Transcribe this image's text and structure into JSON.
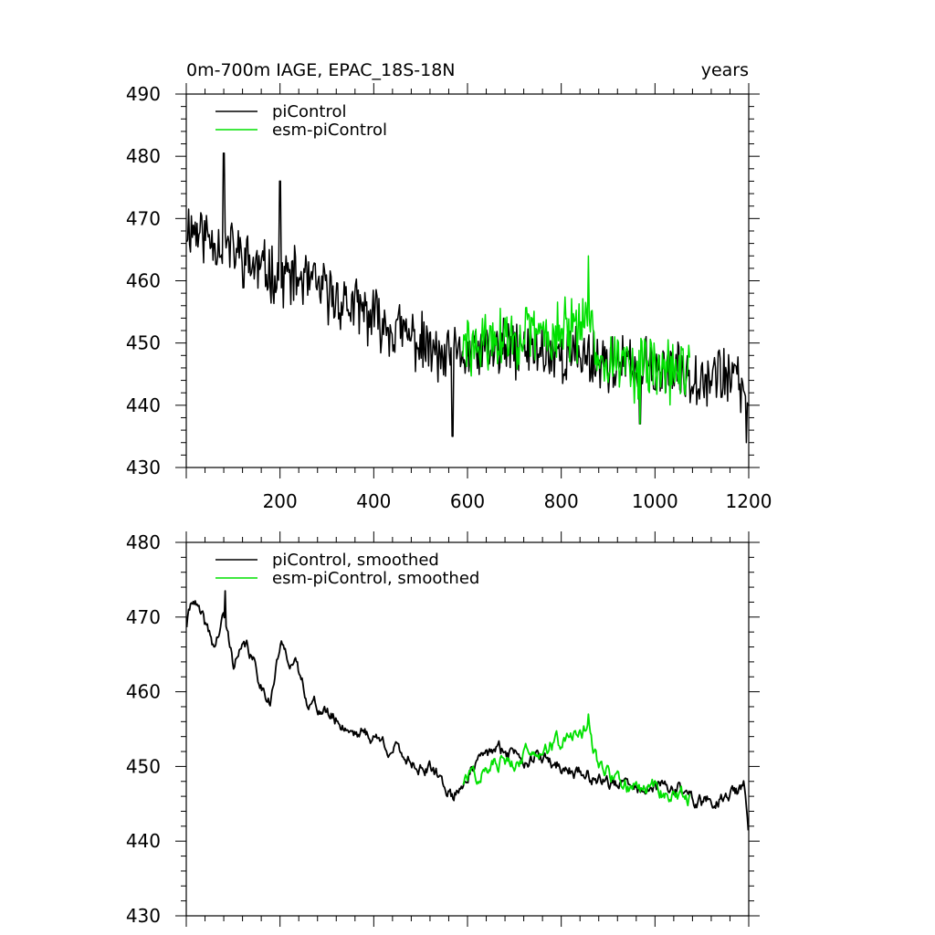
{
  "figure": {
    "title_left": "0m-700m IAGE, EPAC_18S-18N",
    "title_right": "years"
  },
  "colors": {
    "piControl": "#000000",
    "esm_piControl": "#00e000",
    "axis": "#000000",
    "background": "#ffffff"
  },
  "chart_data": [
    {
      "type": "line",
      "title": "0m-700m IAGE, EPAC_18S-18N",
      "xlabel": "years",
      "ylabel": "",
      "xlim": [
        0,
        1200
      ],
      "ylim": [
        430,
        490
      ],
      "xticks": [
        200,
        400,
        600,
        800,
        1000,
        1200
      ],
      "yticks": [
        430,
        440,
        450,
        460,
        470,
        480,
        490
      ],
      "legend": [
        "piControl",
        "esm-piControl"
      ],
      "legend_position": "top-left",
      "series": [
        {
          "name": "piControl",
          "color": "#000000",
          "noise": 4.2,
          "seed": 11,
          "x": [
            1,
            50,
            100,
            150,
            200,
            250,
            300,
            350,
            400,
            450,
            500,
            550,
            600,
            650,
            700,
            750,
            800,
            850,
            900,
            950,
            1000,
            1050,
            1100,
            1150,
            1200
          ],
          "y": [
            469,
            467,
            465,
            462,
            461,
            460,
            458,
            456,
            454,
            452,
            450,
            447,
            448,
            449,
            449,
            449,
            448,
            448,
            447,
            446,
            446,
            445,
            445,
            445,
            442
          ]
        },
        {
          "name": "esm-piControl",
          "color": "#00e000",
          "noise": 4.6,
          "seed": 29,
          "x": [
            590,
            650,
            700,
            750,
            800,
            850,
            900,
            950,
            1000,
            1050,
            1075
          ],
          "y": [
            449,
            450,
            451,
            451,
            452,
            452,
            448,
            446,
            446,
            445,
            446
          ]
        }
      ],
      "spikes": [
        {
          "x": 80,
          "y": 480.5
        },
        {
          "x": 200,
          "y": 476
        },
        {
          "x": 568,
          "y": 435
        },
        {
          "x": 858,
          "y": 464
        },
        {
          "x": 968,
          "y": 437
        },
        {
          "x": 1195,
          "y": 434
        }
      ]
    },
    {
      "type": "line",
      "title": "",
      "xlabel": "",
      "ylabel": "",
      "xlim": [
        0,
        1200
      ],
      "ylim": [
        430,
        480
      ],
      "xticks": [
        200,
        400,
        600,
        800,
        1000,
        1200
      ],
      "yticks": [
        430,
        440,
        450,
        460,
        470,
        480
      ],
      "legend": [
        "piControl, smoothed",
        "esm-piControl, smoothed"
      ],
      "legend_position": "top-left",
      "series": [
        {
          "name": "piControl, smoothed",
          "color": "#000000",
          "noise": 1.3,
          "seed": 41,
          "x": [
            1,
            15,
            30,
            60,
            80,
            100,
            130,
            160,
            180,
            200,
            230,
            260,
            300,
            350,
            400,
            450,
            500,
            530,
            570,
            600,
            650,
            700,
            750,
            800,
            850,
            900,
            950,
            1000,
            1050,
            1100,
            1150,
            1190,
            1200
          ],
          "y": [
            469,
            473,
            470,
            466,
            470,
            464,
            466,
            461,
            459,
            466,
            464,
            459,
            457,
            455,
            454,
            452,
            450,
            449,
            446,
            449,
            452,
            452,
            451,
            450,
            449,
            448,
            447,
            447,
            447,
            445,
            446,
            447,
            441
          ]
        },
        {
          "name": "esm-piControl, smoothed",
          "color": "#00e000",
          "noise": 1.5,
          "seed": 57,
          "x": [
            590,
            620,
            650,
            700,
            750,
            800,
            830,
            855,
            880,
            920,
            960,
            1000,
            1040,
            1075
          ],
          "y": [
            448,
            449,
            450,
            451,
            453,
            453,
            454,
            455,
            450,
            448,
            447,
            447,
            446,
            446
          ]
        }
      ],
      "spikes": [
        {
          "x": 83,
          "y": 473.5
        },
        {
          "x": 858,
          "y": 457
        }
      ]
    }
  ]
}
